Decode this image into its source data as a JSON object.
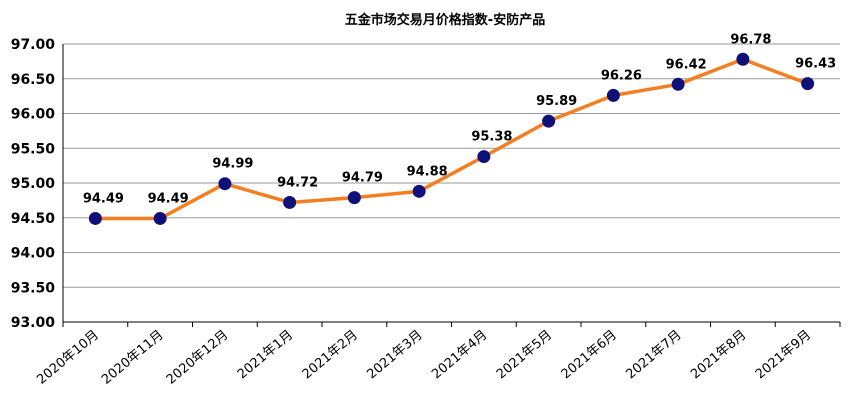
{
  "chart_data": {
    "type": "line",
    "title": "五金市场交易月价格指数-安防产品",
    "categories": [
      "2020年10月",
      "2020年11月",
      "2020年12月",
      "2021年1月",
      "2021年2月",
      "2021年3月",
      "2021年4月",
      "2021年5月",
      "2021年6月",
      "2021年7月",
      "2021年8月",
      "2021年9月"
    ],
    "series": [
      {
        "values": [
          94.49,
          94.49,
          94.99,
          94.72,
          94.79,
          94.88,
          95.38,
          95.89,
          96.26,
          96.42,
          96.78,
          96.43
        ]
      }
    ],
    "data_labels": [
      "94.49",
      "94.49",
      "94.99",
      "94.72",
      "94.79",
      "94.88",
      "95.38",
      "95.89",
      "96.26",
      "96.42",
      "96.78",
      "96.43"
    ],
    "ylim": [
      93.0,
      97.0
    ],
    "yticks": [
      "93.00",
      "93.50",
      "94.00",
      "94.50",
      "95.00",
      "95.50",
      "96.00",
      "96.50",
      "97.00"
    ],
    "grid": true,
    "line_color": "#F57F20",
    "marker_color": "#10107A",
    "grid_color": "#9A9A9A"
  }
}
